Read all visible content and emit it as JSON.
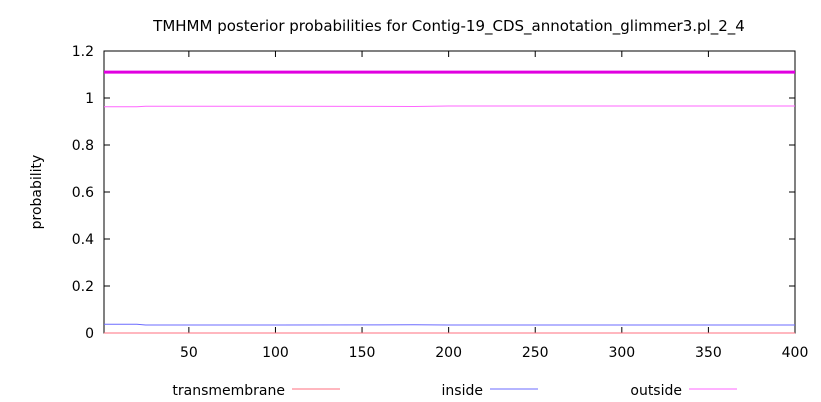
{
  "chart_data": {
    "type": "line",
    "title": "TMHMM posterior probabilities for Contig-19_CDS_annotation_glimmer3.pl_2_4",
    "xlabel": "",
    "ylabel": "probability",
    "xlim": [
      1,
      400
    ],
    "ylim": [
      0,
      1.2
    ],
    "x_ticks": [
      50,
      100,
      150,
      200,
      250,
      300,
      350,
      400
    ],
    "y_ticks": [
      0,
      0.2,
      0.4,
      0.6,
      0.8,
      1,
      1.2
    ],
    "x_tick_labels": [
      "50",
      "100",
      "150",
      "200",
      "250",
      "300",
      "350",
      "400"
    ],
    "y_tick_labels": [
      "0",
      "0.2",
      "0.4",
      "0.6",
      "0.8",
      "1",
      "1.2"
    ],
    "grid": false,
    "legend_position": "bottom",
    "series": [
      {
        "name": "transmembrane",
        "color": "#ff6f7f",
        "x": [
          1,
          400
        ],
        "y": [
          0,
          0
        ]
      },
      {
        "name": "inside",
        "color": "#6b6bff",
        "x": [
          1,
          20,
          25,
          60,
          100,
          180,
          200,
          250,
          300,
          400
        ],
        "y": [
          0.037,
          0.037,
          0.034,
          0.034,
          0.034,
          0.035,
          0.034,
          0.034,
          0.034,
          0.034
        ]
      },
      {
        "name": "outside",
        "color": "#ff66ff",
        "x": [
          1,
          20,
          25,
          60,
          100,
          180,
          200,
          250,
          300,
          400
        ],
        "y": [
          0.963,
          0.963,
          0.965,
          0.965,
          0.965,
          0.964,
          0.966,
          0.966,
          0.966,
          0.966
        ]
      }
    ],
    "annotations": [
      {
        "type": "hline",
        "y": 1.11,
        "color": "#e000e0"
      }
    ]
  }
}
